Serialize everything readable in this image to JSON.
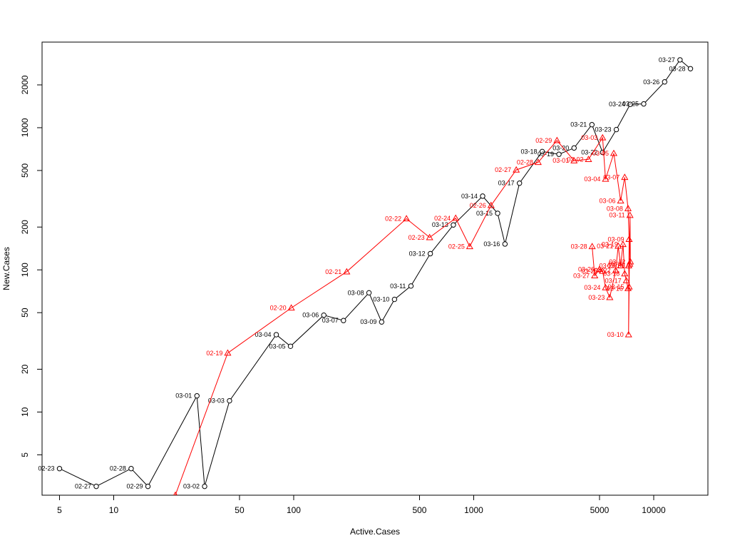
{
  "chart_data": {
    "type": "scatter",
    "title": "",
    "xlabel": "Active.Cases",
    "ylabel": "New.Cases",
    "xscale": "log",
    "yscale": "log",
    "xlim": [
      4,
      20000
    ],
    "ylim": [
      2.6,
      4000
    ],
    "x_ticks": [
      5,
      10,
      50,
      100,
      500,
      1000,
      5000,
      10000
    ],
    "x_tick_labels": [
      "5",
      "10",
      "50",
      "100",
      "500",
      "1000",
      "5000",
      "10000"
    ],
    "y_ticks": [
      5,
      10,
      20,
      50,
      100,
      200,
      500,
      1000,
      2000
    ],
    "y_tick_labels": [
      "5",
      "10",
      "20",
      "50",
      "100",
      "200",
      "500",
      "1000",
      "2000"
    ],
    "grid": false,
    "legend": "none",
    "series": [
      {
        "color": "#000000",
        "marker": "circle",
        "points": [
          {
            "label": "02-23",
            "x": 5,
            "y": 4
          },
          {
            "label": "02-27",
            "x": 8,
            "y": 3
          },
          {
            "label": "02-28",
            "x": 12.5,
            "y": 4
          },
          {
            "label": "02-29",
            "x": 15.5,
            "y": 3
          },
          {
            "label": "03-01",
            "x": 29,
            "y": 13
          },
          {
            "label": "03-02",
            "x": 32,
            "y": 3
          },
          {
            "label": "03-03",
            "x": 44,
            "y": 12
          },
          {
            "label": "03-04",
            "x": 80,
            "y": 35
          },
          {
            "label": "03-05",
            "x": 96,
            "y": 29
          },
          {
            "label": "03-06",
            "x": 147,
            "y": 48
          },
          {
            "label": "03-07",
            "x": 189,
            "y": 44
          },
          {
            "label": "03-08",
            "x": 262,
            "y": 69
          },
          {
            "label": "03-09",
            "x": 308,
            "y": 43
          },
          {
            "label": "03-10",
            "x": 363,
            "y": 62
          },
          {
            "label": "03-11",
            "x": 448,
            "y": 77
          },
          {
            "label": "03-12",
            "x": 574,
            "y": 130
          },
          {
            "label": "03-13",
            "x": 771,
            "y": 207
          },
          {
            "label": "03-14",
            "x": 1121,
            "y": 330
          },
          {
            "label": "03-15",
            "x": 1358,
            "y": 250
          },
          {
            "label": "03-16",
            "x": 1492,
            "y": 152
          },
          {
            "label": "03-17",
            "x": 1796,
            "y": 407
          },
          {
            "label": "03-18",
            "x": 2402,
            "y": 680
          },
          {
            "label": "03-19",
            "x": 2975,
            "y": 650
          },
          {
            "label": "03-20",
            "x": 3610,
            "y": 720
          },
          {
            "label": "03-21",
            "x": 4536,
            "y": 1050
          },
          {
            "label": "03-22",
            "x": 5200,
            "y": 670
          },
          {
            "label": "03-23",
            "x": 6200,
            "y": 970
          },
          {
            "label": "03-24",
            "x": 7400,
            "y": 1460
          },
          {
            "label": "03-25",
            "x": 8800,
            "y": 1470
          },
          {
            "label": "03-26",
            "x": 11500,
            "y": 2100
          },
          {
            "label": "03-27",
            "x": 14000,
            "y": 3000
          },
          {
            "label": "03-28",
            "x": 16000,
            "y": 2600
          }
        ]
      },
      {
        "color": "#ff0000",
        "marker": "triangle",
        "points": [
          {
            "label": "",
            "x": 22,
            "y": 2.6
          },
          {
            "label": "02-19",
            "x": 43,
            "y": 26
          },
          {
            "label": "02-20",
            "x": 97,
            "y": 54
          },
          {
            "label": "02-21",
            "x": 197,
            "y": 97
          },
          {
            "label": "02-22",
            "x": 423,
            "y": 229
          },
          {
            "label": "02-23",
            "x": 569,
            "y": 169
          },
          {
            "label": "02-24",
            "x": 794,
            "y": 231
          },
          {
            "label": "02-25",
            "x": 950,
            "y": 146
          },
          {
            "label": "02-26",
            "x": 1248,
            "y": 284
          },
          {
            "label": "02-27",
            "x": 1723,
            "y": 505
          },
          {
            "label": "02-28",
            "x": 2280,
            "y": 571
          },
          {
            "label": "02-29",
            "x": 2902,
            "y": 813
          },
          {
            "label": "03-01",
            "x": 3610,
            "y": 586
          },
          {
            "label": "03-02",
            "x": 4341,
            "y": 599
          },
          {
            "label": "03-03",
            "x": 5200,
            "y": 850
          },
          {
            "label": "03-04",
            "x": 5400,
            "y": 435
          },
          {
            "label": "03-05",
            "x": 6000,
            "y": 660
          },
          {
            "label": "03-06",
            "x": 6550,
            "y": 306
          },
          {
            "label": "03-07",
            "x": 6900,
            "y": 448
          },
          {
            "label": "03-08",
            "x": 7200,
            "y": 270
          },
          {
            "label": "03-09",
            "x": 7300,
            "y": 164
          },
          {
            "label": "03-10",
            "x": 7250,
            "y": 35
          },
          {
            "label": "03-11",
            "x": 7380,
            "y": 242
          },
          {
            "label": "03-12",
            "x": 7420,
            "y": 114
          },
          {
            "label": "03-13",
            "x": 7350,
            "y": 110
          },
          {
            "label": "03-14",
            "x": 7260,
            "y": 107
          },
          {
            "label": "03-15",
            "x": 7300,
            "y": 76
          },
          {
            "label": "03-16",
            "x": 7200,
            "y": 74
          },
          {
            "label": "03-17",
            "x": 7050,
            "y": 84
          },
          {
            "label": "03-18",
            "x": 6900,
            "y": 94
          },
          {
            "label": "03-19",
            "x": 6750,
            "y": 151
          },
          {
            "label": "03-20",
            "x": 6550,
            "y": 107
          },
          {
            "label": "03-21",
            "x": 6350,
            "y": 147
          },
          {
            "label": "03-22",
            "x": 6150,
            "y": 99
          },
          {
            "label": "03-23",
            "x": 5700,
            "y": 64
          },
          {
            "label": "03-24",
            "x": 5400,
            "y": 75
          },
          {
            "label": "03-25",
            "x": 5200,
            "y": 98
          },
          {
            "label": "03-26",
            "x": 5000,
            "y": 101
          },
          {
            "label": "03-27",
            "x": 4700,
            "y": 91
          },
          {
            "label": "03-28",
            "x": 4550,
            "y": 146
          }
        ]
      }
    ]
  }
}
